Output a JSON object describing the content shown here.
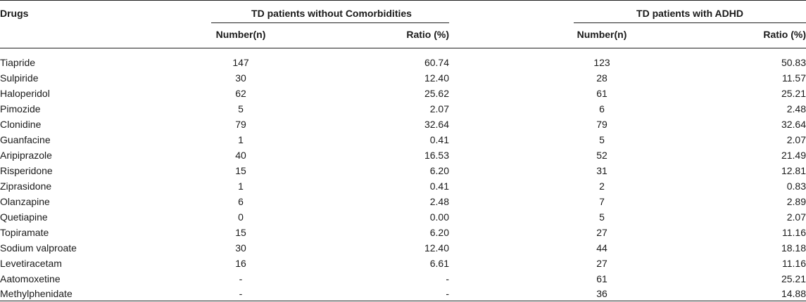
{
  "header": {
    "drugs_label": "Drugs",
    "group1_label": "TD patients without Comorbidities",
    "group2_label": "TD patients with ADHD",
    "number_label": "Number(n)",
    "ratio_label": "Ratio (%)"
  },
  "rows": [
    {
      "drug": "Tiapride",
      "n1": "147",
      "r1": "60.74",
      "n2": "123",
      "r2": "50.83"
    },
    {
      "drug": "Sulpiride",
      "n1": "30",
      "r1": "12.40",
      "n2": "28",
      "r2": "11.57"
    },
    {
      "drug": "Haloperidol",
      "n1": "62",
      "r1": "25.62",
      "n2": "61",
      "r2": "25.21"
    },
    {
      "drug": "Pimozide",
      "n1": "5",
      "r1": "2.07",
      "n2": "6",
      "r2": "2.48"
    },
    {
      "drug": "Clonidine",
      "n1": "79",
      "r1": "32.64",
      "n2": "79",
      "r2": "32.64"
    },
    {
      "drug": "Guanfacine",
      "n1": "1",
      "r1": "0.41",
      "n2": "5",
      "r2": "2.07"
    },
    {
      "drug": "Aripiprazole",
      "n1": "40",
      "r1": "16.53",
      "n2": "52",
      "r2": "21.49"
    },
    {
      "drug": "Risperidone",
      "n1": "15",
      "r1": "6.20",
      "n2": "31",
      "r2": "12.81"
    },
    {
      "drug": "Ziprasidone",
      "n1": "1",
      "r1": "0.41",
      "n2": "2",
      "r2": "0.83"
    },
    {
      "drug": "Olanzapine",
      "n1": "6",
      "r1": "2.48",
      "n2": "7",
      "r2": "2.89"
    },
    {
      "drug": "Quetiapine",
      "n1": "0",
      "r1": "0.00",
      "n2": "5",
      "r2": "2.07"
    },
    {
      "drug": "Topiramate",
      "n1": "15",
      "r1": "6.20",
      "n2": "27",
      "r2": "11.16"
    },
    {
      "drug": "Sodium valproate",
      "n1": "30",
      "r1": "12.40",
      "n2": "44",
      "r2": "18.18"
    },
    {
      "drug": "Levetiracetam",
      "n1": "16",
      "r1": "6.61",
      "n2": "27",
      "r2": "11.16"
    },
    {
      "drug": "Aatomoxetine",
      "n1": "-",
      "r1": "-",
      "n2": "61",
      "r2": "25.21"
    },
    {
      "drug": "Methylphenidate",
      "n1": "-",
      "r1": "-",
      "n2": "36",
      "r2": "14.88"
    }
  ]
}
